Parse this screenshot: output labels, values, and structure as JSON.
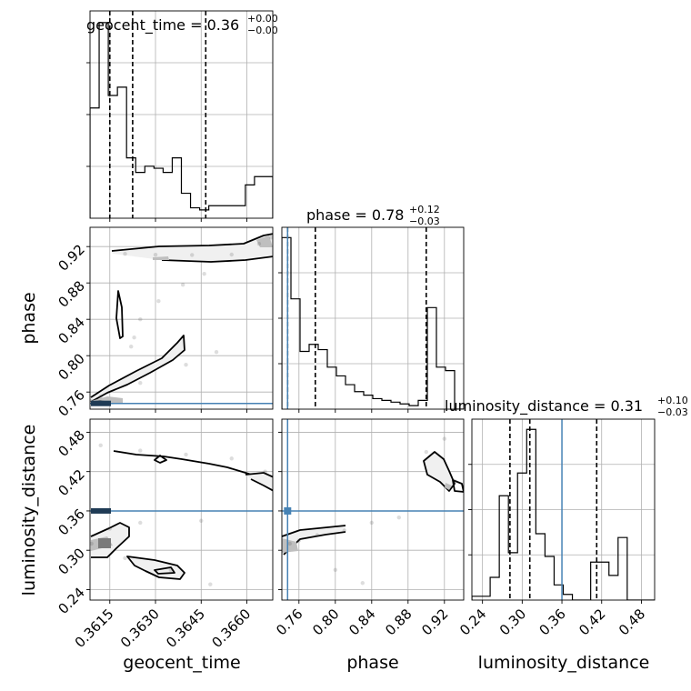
{
  "chart_data": {
    "type": "corner",
    "parameters": [
      "geocent_time",
      "phase",
      "luminosity_distance"
    ],
    "axis_labels": {
      "geocent_time": "geocent_time",
      "phase": "phase",
      "luminosity_distance": "luminosity_distance"
    },
    "ranges": {
      "geocent_time": [
        0.36085,
        0.36685
      ],
      "phase": [
        0.7412,
        0.9412
      ],
      "luminosity_distance": [
        0.224,
        0.5
      ]
    },
    "ticks": {
      "geocent_time": {
        "values": [
          0.3615,
          0.363,
          0.3645,
          0.366
        ],
        "labels": [
          "0.3615",
          "0.3630",
          "0.3645",
          "0.3660"
        ]
      },
      "phase": {
        "values": [
          0.76,
          0.8,
          0.84,
          0.88,
          0.92
        ],
        "labels": [
          "0.76",
          "0.80",
          "0.84",
          "0.88",
          "0.92"
        ]
      },
      "luminosity_distance": {
        "values": [
          0.24,
          0.3,
          0.36,
          0.42,
          0.48
        ],
        "labels": [
          "0.24",
          "0.30",
          "0.36",
          "0.42",
          "0.48"
        ]
      }
    },
    "titles": [
      {
        "param": "geocent_time",
        "text": "geocent_time = 0.36",
        "sup": "+0.00",
        "sub": "−0.00"
      },
      {
        "param": "phase",
        "text": "phase = 0.78",
        "sup": "+0.12",
        "sub": "−0.03"
      },
      {
        "param": "luminosity_distance",
        "text": "luminosity_distance = 0.31",
        "sup": "+0.10",
        "sub": "−0.03"
      }
    ],
    "truths": {
      "phase": 0.7475,
      "luminosity_distance": 0.36
    },
    "quantiles": {
      "geocent_time": [
        0.3615,
        0.36225,
        0.36465
      ],
      "phase": [
        0.7475,
        0.778,
        0.9
      ],
      "luminosity_distance": [
        0.2815,
        0.3115,
        0.4125
      ]
    },
    "histograms": {
      "geocent_time": {
        "edges": [
          0.36085,
          0.36115,
          0.36145,
          0.36175,
          0.36205,
          0.36235,
          0.36265,
          0.36295,
          0.36325,
          0.36355,
          0.36385,
          0.36415,
          0.36445,
          0.36475,
          0.36505,
          0.36535,
          0.36565,
          0.36595,
          0.36625,
          0.36655,
          0.36685
        ],
        "counts": [
          0.53,
          0.94,
          0.59,
          0.63,
          0.29,
          0.22,
          0.25,
          0.24,
          0.22,
          0.29,
          0.12,
          0.05,
          0.04,
          0.06,
          0.06,
          0.06,
          0.06,
          0.16,
          0.2,
          0.2
        ]
      },
      "phase": {
        "edges": [
          0.7412,
          0.7512,
          0.7612,
          0.7712,
          0.7812,
          0.7912,
          0.8012,
          0.8112,
          0.8212,
          0.8312,
          0.8412,
          0.8512,
          0.8612,
          0.8712,
          0.8812,
          0.8912,
          0.9012,
          0.9112,
          0.9212,
          0.9312,
          0.9412
        ],
        "counts": [
          0.98,
          0.63,
          0.33,
          0.37,
          0.34,
          0.24,
          0.19,
          0.14,
          0.1,
          0.08,
          0.06,
          0.05,
          0.04,
          0.03,
          0.02,
          0.05,
          0.58,
          0.24,
          0.22,
          0.0
        ]
      },
      "luminosity_distance": {
        "edges": [
          0.224,
          0.2378,
          0.2516,
          0.2654,
          0.2792,
          0.293,
          0.3068,
          0.3206,
          0.3344,
          0.3482,
          0.362,
          0.3758,
          0.3896,
          0.4034,
          0.4172,
          0.431,
          0.4448,
          0.4586,
          0.4724,
          0.4862,
          0.5
        ],
        "counts": [
          0.02,
          0.02,
          0.12,
          0.55,
          0.25,
          0.67,
          0.9,
          0.35,
          0.23,
          0.08,
          0.03,
          0.0,
          0.0,
          0.2,
          0.2,
          0.13,
          0.33,
          0.0,
          0.0,
          0.0
        ]
      }
    },
    "scatter_2d": [
      {
        "x": "geocent_time",
        "y": "phase",
        "points": [
          [
            0.362,
            0.912
          ],
          [
            0.363,
            0.911
          ],
          [
            0.3642,
            0.9108
          ],
          [
            0.3655,
            0.9112
          ],
          [
            0.3664,
            0.923
          ],
          [
            0.3668,
            0.93
          ],
          [
            0.3623,
            0.82
          ],
          [
            0.3622,
            0.81
          ],
          [
            0.3625,
            0.84
          ],
          [
            0.3631,
            0.86
          ],
          [
            0.3639,
            0.878
          ],
          [
            0.3646,
            0.89
          ],
          [
            0.3612,
            0.755
          ],
          [
            0.3625,
            0.77
          ],
          [
            0.364,
            0.79
          ],
          [
            0.365,
            0.804
          ],
          [
            0.3609,
            0.75
          ]
        ]
      },
      {
        "x": "phase",
        "y": "luminosity_distance",
        "points": [
          [
            0.75,
            0.31
          ],
          [
            0.76,
            0.315
          ],
          [
            0.78,
            0.323
          ],
          [
            0.81,
            0.33
          ],
          [
            0.84,
            0.342
          ],
          [
            0.87,
            0.35
          ],
          [
            0.8,
            0.27
          ],
          [
            0.83,
            0.25
          ],
          [
            0.9,
            0.45
          ],
          [
            0.92,
            0.47
          ],
          [
            0.932,
            0.405
          ]
        ]
      },
      {
        "x": "geocent_time",
        "y": "luminosity_distance",
        "points": [
          [
            0.3612,
            0.46
          ],
          [
            0.3625,
            0.452
          ],
          [
            0.364,
            0.446
          ],
          [
            0.3655,
            0.44
          ],
          [
            0.3666,
            0.42
          ],
          [
            0.3615,
            0.333
          ],
          [
            0.3625,
            0.342
          ],
          [
            0.3645,
            0.345
          ],
          [
            0.362,
            0.288
          ],
          [
            0.3635,
            0.27
          ],
          [
            0.3648,
            0.248
          ],
          [
            0.3609,
            0.31
          ]
        ]
      }
    ],
    "grid": true
  }
}
